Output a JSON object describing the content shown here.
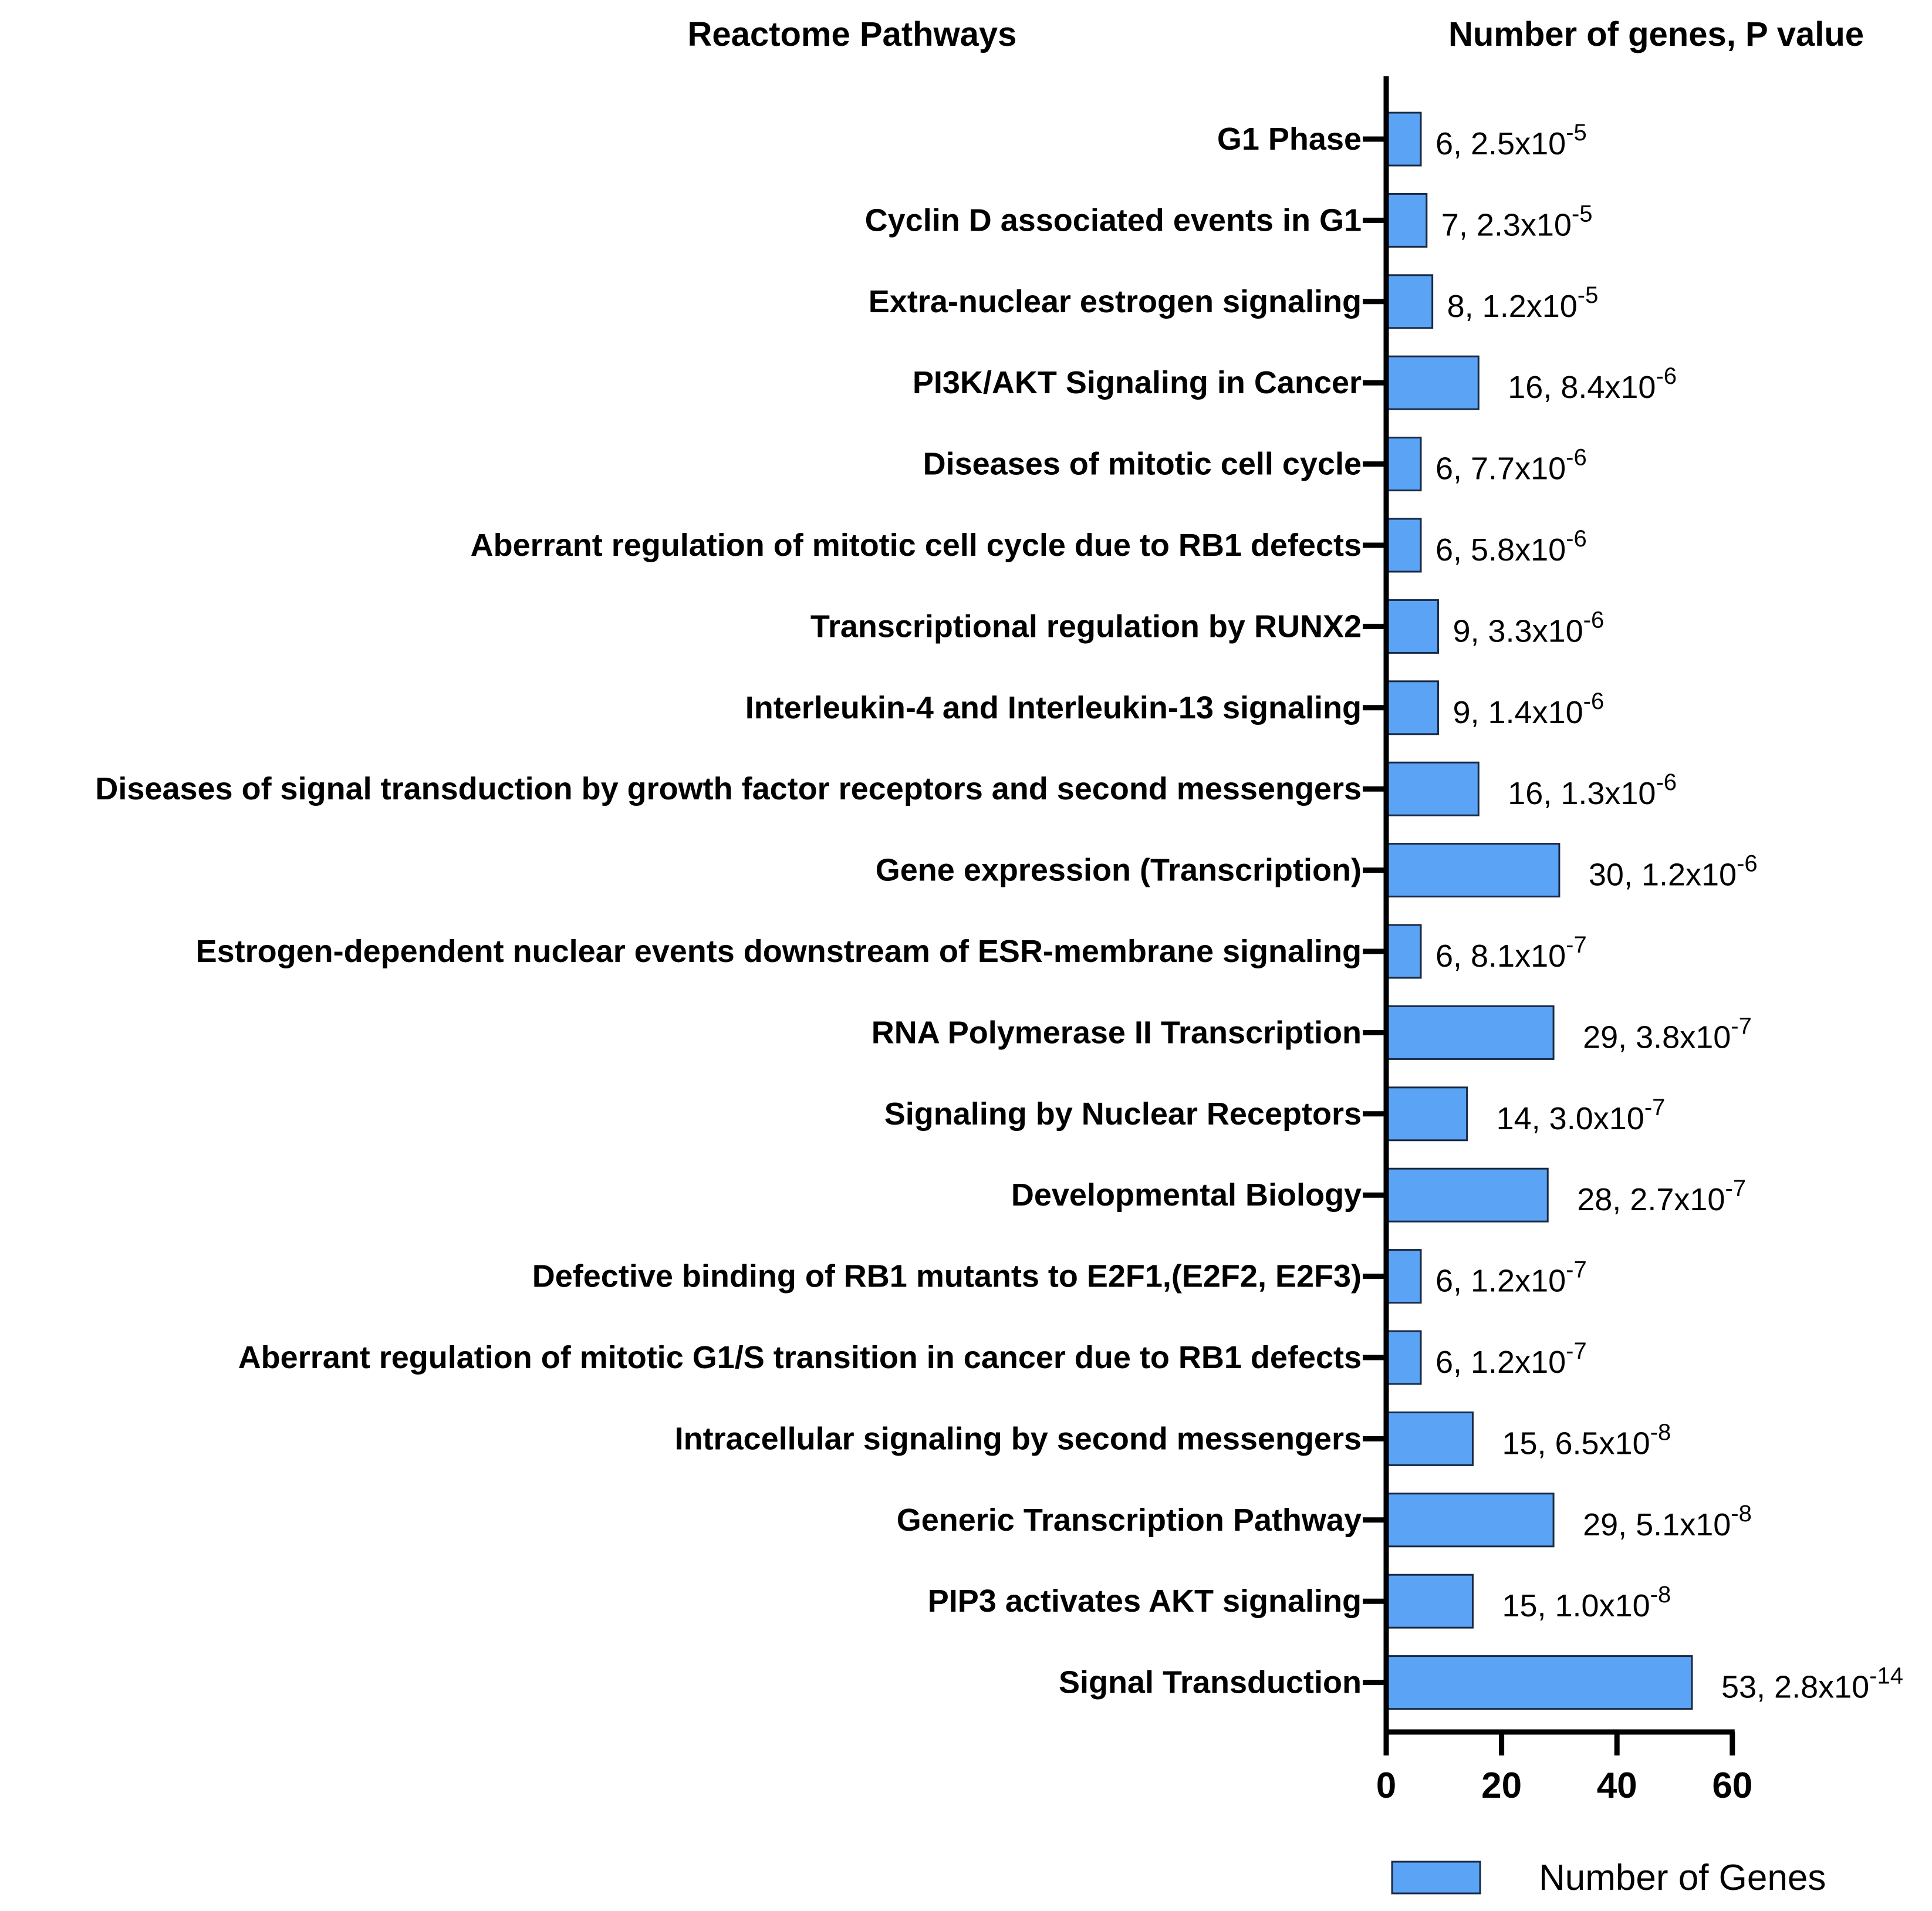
{
  "chart_data": {
    "type": "bar",
    "orientation": "horizontal",
    "left_header": "Reactome Pathways",
    "right_header": "Number of genes, P value",
    "categories": [
      "G1 Phase",
      "Cyclin D associated events in G1",
      "Extra-nuclear estrogen signaling",
      "PI3K/AKT Signaling in Cancer",
      "Diseases of mitotic cell cycle",
      "Aberrant regulation of mitotic cell cycle due to RB1 defects",
      "Transcriptional regulation by RUNX2",
      "Interleukin-4 and Interleukin-13 signaling",
      "Diseases of signal transduction by growth factor receptors and second messengers",
      "Gene expression (Transcription)",
      "Estrogen-dependent nuclear events downstream of ESR-membrane signaling",
      "RNA Polymerase II Transcription",
      "Signaling by Nuclear Receptors",
      "Developmental Biology",
      "Defective binding of RB1 mutants to E2F1,(E2F2, E2F3)",
      "Aberrant regulation of mitotic G1/S transition in cancer due to RB1 defects",
      "Intracellular signaling by second messengers",
      "Generic Transcription Pathway",
      "PIP3 activates AKT signaling",
      "Signal Transduction"
    ],
    "series": [
      {
        "name": "Number of Genes",
        "values": [
          6,
          7,
          8,
          16,
          6,
          6,
          9,
          9,
          16,
          30,
          6,
          29,
          14,
          28,
          6,
          6,
          15,
          29,
          15,
          53
        ]
      }
    ],
    "data_labels": [
      {
        "prefix": "6, 2.5x10",
        "exp": "-5"
      },
      {
        "prefix": "7, 2.3x10",
        "exp": "-5"
      },
      {
        "prefix": "8, 1.2x10",
        "exp": "-5"
      },
      {
        "prefix": "16, 8.4x10",
        "exp": "-6"
      },
      {
        "prefix": "6, 7.7x10",
        "exp": "-6"
      },
      {
        "prefix": "6, 5.8x10",
        "exp": "-6"
      },
      {
        "prefix": "9, 3.3x10",
        "exp": "-6"
      },
      {
        "prefix": "9, 1.4x10",
        "exp": "-6"
      },
      {
        "prefix": "16, 1.3x10",
        "exp": "-6"
      },
      {
        "prefix": "30, 1.2x10",
        "exp": "-6"
      },
      {
        "prefix": "6, 8.1x10",
        "exp": "-7"
      },
      {
        "prefix": "29, 3.8x10",
        "exp": "-7"
      },
      {
        "prefix": "14, 3.0x10",
        "exp": "-7"
      },
      {
        "prefix": "28, 2.7x10",
        "exp": "-7"
      },
      {
        "prefix": "6, 1.2x10",
        "exp": "-7"
      },
      {
        "prefix": "6, 1.2x10",
        "exp": "-7"
      },
      {
        "prefix": "15, 6.5x10",
        "exp": "-8"
      },
      {
        "prefix": "29, 5.1x10",
        "exp": "-8"
      },
      {
        "prefix": "15, 1.0x10",
        "exp": "-8"
      },
      {
        "prefix": "53, 2.8x10",
        "exp": "-14"
      }
    ],
    "x_ticks": [
      "0",
      "20",
      "40",
      "60"
    ],
    "xlim": [
      0,
      60
    ],
    "grid": false,
    "legend": {
      "position": "bottom-right",
      "entries": [
        "Number of Genes"
      ]
    },
    "colors": {
      "bar": "#5aa3f5",
      "bar_edge": "#1a2a44",
      "axis": "#000000"
    }
  }
}
